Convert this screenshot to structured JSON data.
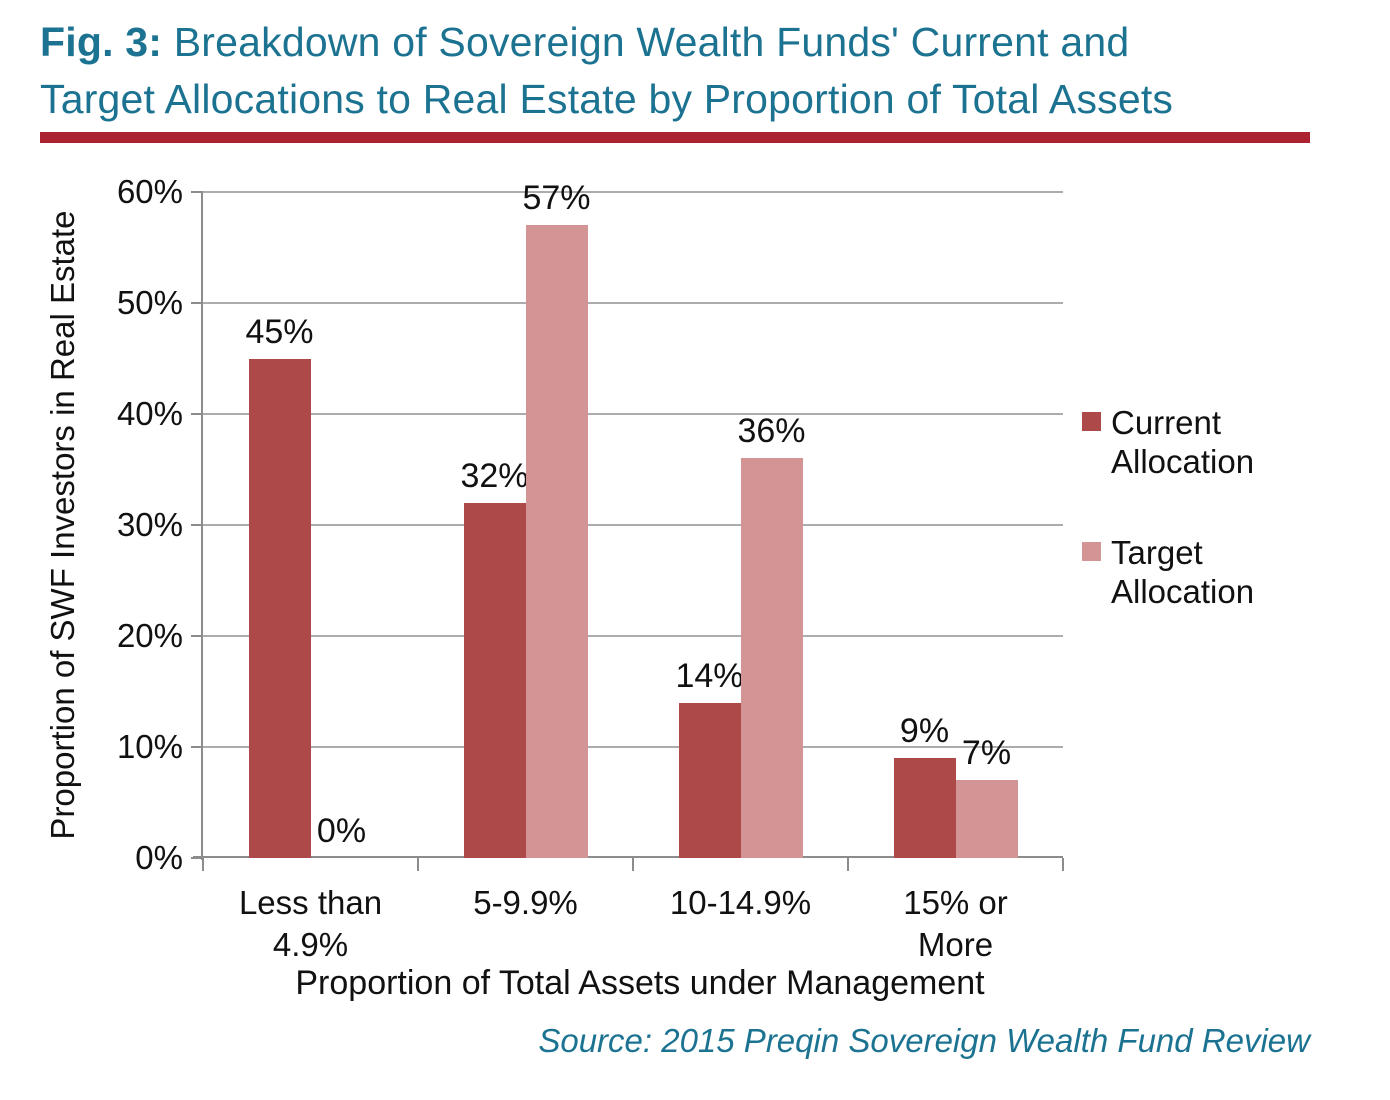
{
  "title": {
    "prefix": "Fig. 3:",
    "line1_rest": " Breakdown of Sovereign Wealth Funds' Current and",
    "line2": "Target Allocations to Real Estate by Proportion of Total Assets"
  },
  "source_note": "Source: 2015 Preqin Sovereign Wealth Fund Review",
  "colors": {
    "title_teal": "#1C7391",
    "rule_red": "#AC2231",
    "current_bar": "#AD4A49",
    "target_bar": "#D29494",
    "gridline": "#ACACAC",
    "axis": "#8C8C8C",
    "text": "#111111"
  },
  "chart_data": {
    "type": "bar",
    "title": "Fig. 3: Breakdown of Sovereign Wealth Funds' Current and Target Allocations to Real Estate by Proportion of Total Assets",
    "categories": [
      "Less than\n4.9%",
      "5-9.9%",
      "10-14.9%",
      "15% or More"
    ],
    "series": [
      {
        "name": "Current Allocation",
        "color": "#AD4A49",
        "values": [
          45,
          32,
          14,
          9
        ],
        "labels": [
          "45%",
          "32%",
          "14%",
          "9%"
        ]
      },
      {
        "name": "Target Allocation",
        "color": "#D29494",
        "values": [
          0,
          57,
          36,
          7
        ],
        "labels": [
          "0%",
          "57%",
          "36%",
          "7%"
        ]
      }
    ],
    "xlabel": "Proportion of Total Assets under Management",
    "ylabel": "Proportion of SWF Investors in Real Estate",
    "ylim": [
      0,
      60
    ],
    "ytick_step": 10,
    "ytick_labels": [
      "0%",
      "10%",
      "20%",
      "30%",
      "40%",
      "50%",
      "60%"
    ],
    "grid": true,
    "legend_position": "right"
  }
}
